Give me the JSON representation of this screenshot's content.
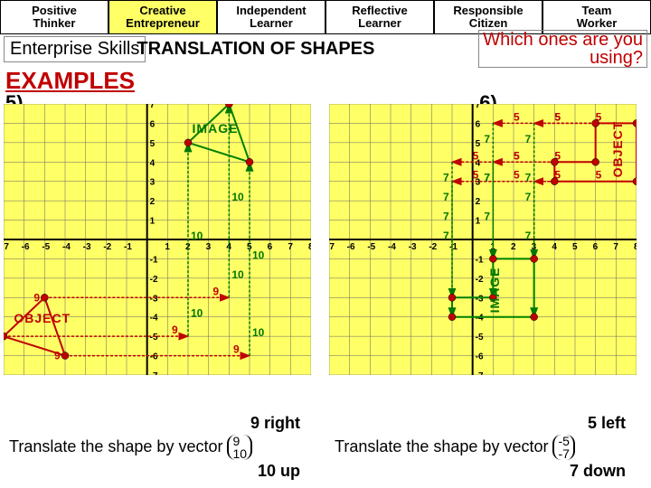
{
  "tabs": [
    {
      "l1": "Positive",
      "l2": "Thinker",
      "bg": "#ffffff"
    },
    {
      "l1": "Creative",
      "l2": "Entrepreneur",
      "bg": "#ffff66"
    },
    {
      "l1": "Independent",
      "l2": "Learner",
      "bg": "#ffffff"
    },
    {
      "l1": "Reflective",
      "l2": "Learner",
      "bg": "#ffffff"
    },
    {
      "l1": "Responsible",
      "l2": "Citizen",
      "bg": "#ffffff"
    },
    {
      "l1": "Team",
      "l2": "Worker",
      "bg": "#ffffff"
    }
  ],
  "enterprise": "Enterprise Skills",
  "title": "TRANSLATION OF SHAPES",
  "prompt_l1": "Which ones are you",
  "prompt_l2": "using?",
  "examples": "EXAMPLES",
  "q5": "5)",
  "q6": "6)",
  "grid": {
    "xmin": -7,
    "xmax": 8,
    "ymin": -7,
    "ymax": 7,
    "bg": "#ffff66"
  },
  "p5": {
    "object": {
      "pts": [
        [
          -7,
          -5
        ],
        [
          -5,
          -3
        ],
        [
          -4,
          -6
        ]
      ],
      "label": "OBJECT",
      "label_color": "#c00000"
    },
    "image": {
      "pts": [
        [
          2,
          5
        ],
        [
          4,
          7
        ],
        [
          5,
          4
        ]
      ],
      "label": "IMAGE",
      "label_color": "#007700"
    },
    "arrows_right_dist": "9",
    "arrows_up_dist": "10",
    "translate_text": "Translate the shape by vector",
    "vec": {
      "x": "9",
      "y": "10"
    },
    "shift_right": "9 right",
    "shift_up": "10 up"
  },
  "p6": {
    "object": {
      "pts": [
        [
          4,
          4
        ],
        [
          6,
          4
        ],
        [
          6,
          6
        ],
        [
          8,
          6
        ],
        [
          8,
          3
        ],
        [
          4,
          3
        ]
      ],
      "label": "OBJECT",
      "label_color": "#c00000"
    },
    "image": {
      "pts": [
        [
          -1,
          -3
        ],
        [
          1,
          -3
        ],
        [
          1,
          -1
        ],
        [
          3,
          -1
        ],
        [
          3,
          -4
        ],
        [
          -1,
          -4
        ]
      ],
      "label": "IMAGE",
      "label_color": "#007700"
    },
    "arrows_left_dist": "5",
    "arrows_down_dist": "7",
    "translate_text": "Translate the shape by vector",
    "vec": {
      "x": "-5",
      "y": "-7"
    },
    "shift_left": "5 left",
    "shift_down": "7 down"
  }
}
